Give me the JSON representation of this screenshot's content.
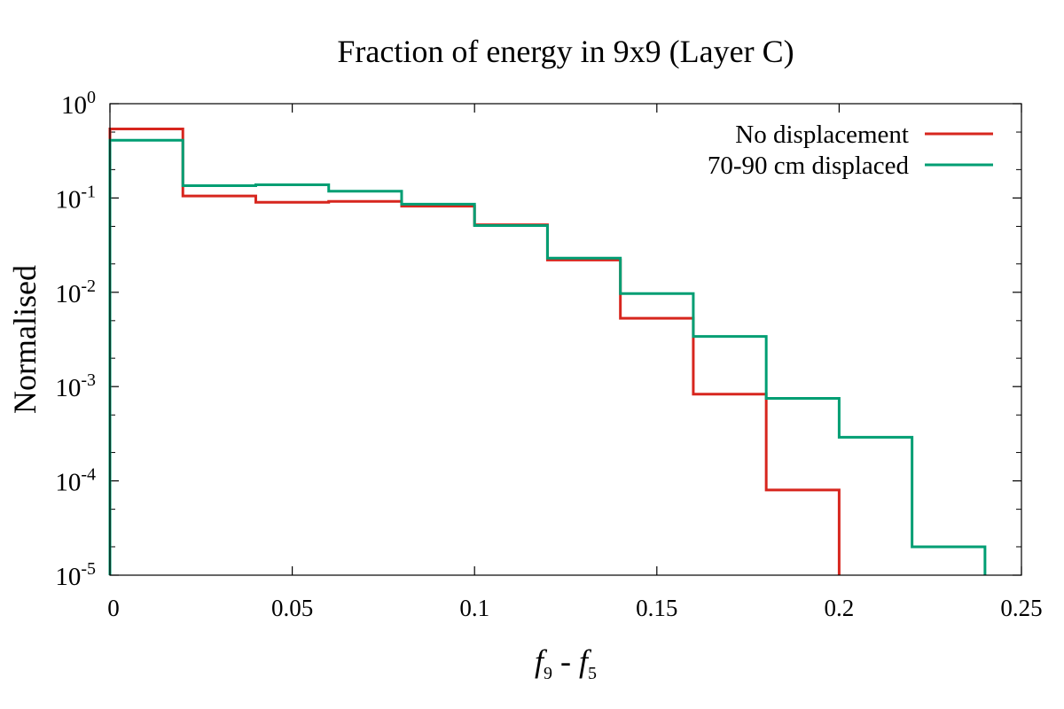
{
  "chart_data": {
    "type": "line",
    "style": "step-histogram",
    "title": "Fraction of energy in 9x9 (Layer C)",
    "xlabel": {
      "var1": "f",
      "sub1": "9",
      "op": " - ",
      "var2": "f",
      "sub2": "5"
    },
    "ylabel": "Normalised",
    "xlim": [
      0,
      0.25
    ],
    "ylim": [
      1e-05,
      1
    ],
    "yscale": "log",
    "x_ticks": [
      "0",
      "0.05",
      "0.1",
      "0.15",
      "0.2",
      "0.25"
    ],
    "x_tick_values": [
      0,
      0.05,
      0.1,
      0.15,
      0.2,
      0.25
    ],
    "y_ticks": [
      {
        "base": "10",
        "exp": "0",
        "value": 1
      },
      {
        "base": "10",
        "exp": "-1",
        "value": 0.1
      },
      {
        "base": "10",
        "exp": "-2",
        "value": 0.01
      },
      {
        "base": "10",
        "exp": "-3",
        "value": 0.001
      },
      {
        "base": "10",
        "exp": "-4",
        "value": 0.0001
      },
      {
        "base": "10",
        "exp": "-5",
        "value": 1e-05
      }
    ],
    "bin_edges": [
      0,
      0.02,
      0.04,
      0.06,
      0.08,
      0.1,
      0.12,
      0.14,
      0.16,
      0.18,
      0.2,
      0.22,
      0.24
    ],
    "legend_position": "top-right",
    "series": [
      {
        "name": "No displacement",
        "color": "#d7261e",
        "values": [
          0.54,
          0.105,
          0.09,
          0.092,
          0.082,
          0.052,
          0.022,
          0.0053,
          0.00083,
          8e-05,
          0,
          0
        ]
      },
      {
        "name": "70-90 cm displaced",
        "color": "#009e73",
        "values": [
          0.41,
          0.135,
          0.138,
          0.118,
          0.086,
          0.051,
          0.023,
          0.0097,
          0.0034,
          0.00075,
          0.00029,
          2e-05
        ]
      }
    ]
  }
}
